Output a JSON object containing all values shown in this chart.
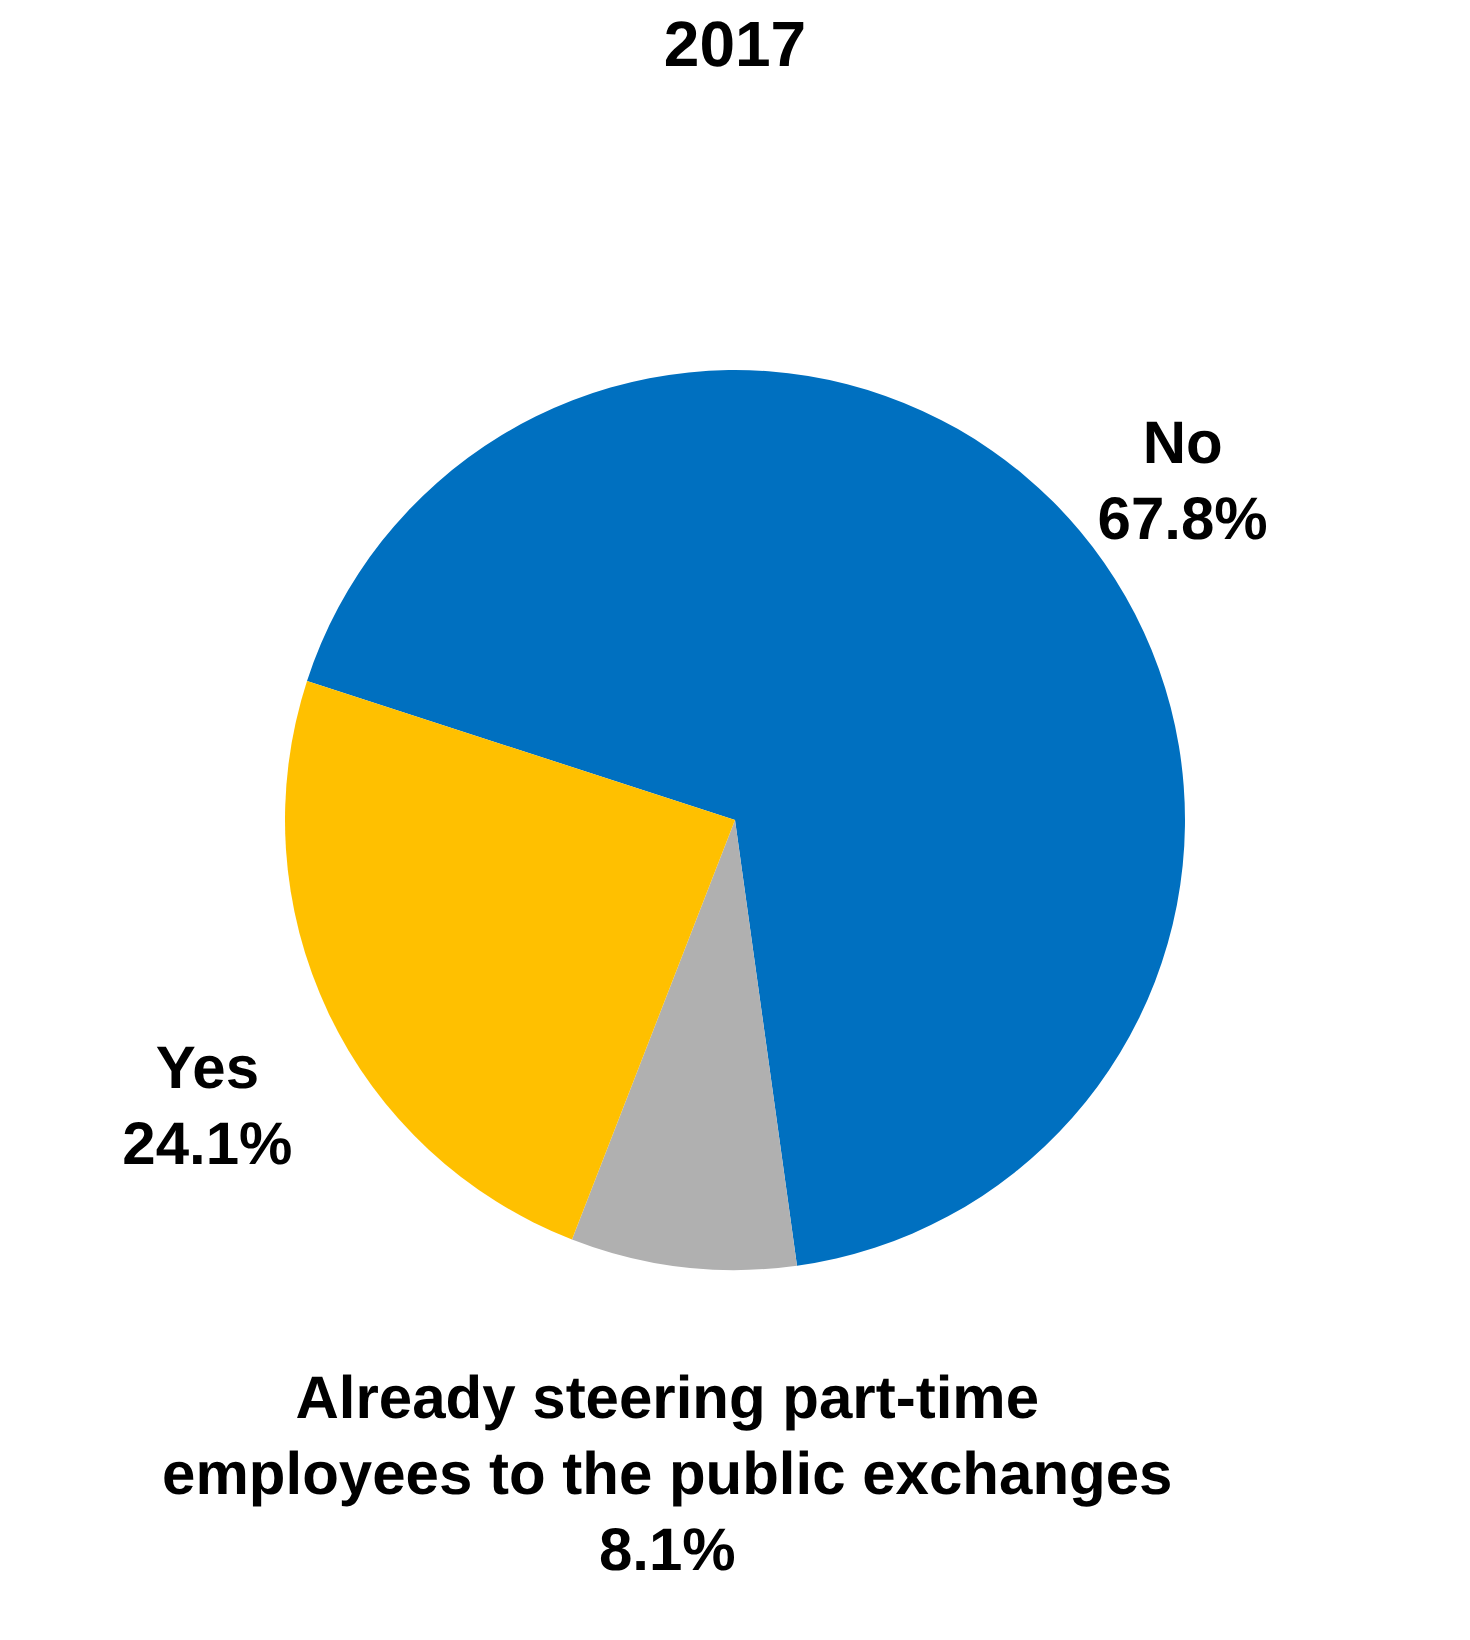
{
  "chart_data": {
    "type": "pie",
    "title": "2017",
    "categories": [
      "No",
      "Already steering part-time employees to the public exchanges",
      "Yes"
    ],
    "values": [
      67.8,
      8.1,
      24.1
    ],
    "colors": [
      "#0070c0",
      "#b0b0b0",
      "#ffc000"
    ],
    "value_labels": [
      "67.8%",
      "8.1%",
      "24.1%"
    ],
    "legend": false
  }
}
